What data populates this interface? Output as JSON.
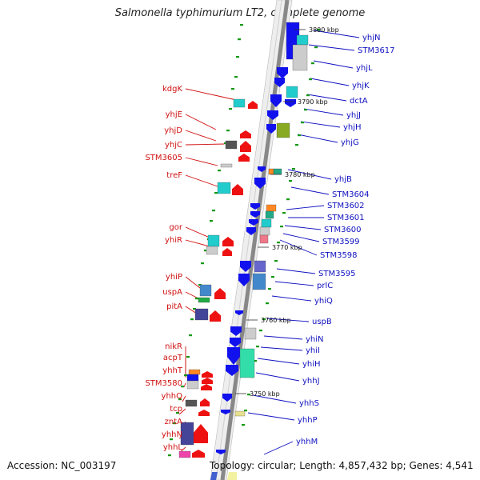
{
  "title": "Salmonella typhimurium LT2, complete genome",
  "footer": {
    "accession": "Accession: NC_003197",
    "topology": "Topology: circular; Length: 4,857,432 bp; Genes: 4,541"
  },
  "colors": {
    "forward": "#ee1111",
    "reverse": "#1111ee",
    "backbone": "#888888",
    "leader_fwd": "#d01010",
    "leader_rev": "#1010c0",
    "dash": "#119911"
  },
  "ticks": [
    {
      "label": "3800 kbp"
    },
    {
      "label": "3790 kbp"
    },
    {
      "label": "3780 kbp"
    },
    {
      "label": "3770 kbp"
    },
    {
      "label": "3760 kbp"
    },
    {
      "label": "3750 kbp"
    }
  ],
  "forward_genes": [
    {
      "label": "kdgK"
    },
    {
      "label": "yhjE"
    },
    {
      "label": "yhjD"
    },
    {
      "label": "yhjC"
    },
    {
      "label": "STM3605"
    },
    {
      "label": "treF"
    },
    {
      "label": "gor"
    },
    {
      "label": "yhiR"
    },
    {
      "label": "yhiP"
    },
    {
      "label": "uspA"
    },
    {
      "label": "pitA"
    },
    {
      "label": "nikR"
    },
    {
      "label": "acpT"
    },
    {
      "label": "yhhT"
    },
    {
      "label": "STM3580"
    },
    {
      "label": "yhhQ"
    },
    {
      "label": "tcp"
    },
    {
      "label": "zntA"
    },
    {
      "label": "yhhN"
    },
    {
      "label": "yhhL"
    }
  ],
  "reverse_genes": [
    {
      "label": "yhjN"
    },
    {
      "label": "STM3617"
    },
    {
      "label": "yhjL"
    },
    {
      "label": "yhjK"
    },
    {
      "label": "dctA"
    },
    {
      "label": "yhjJ"
    },
    {
      "label": "yhjH"
    },
    {
      "label": "yhjG"
    },
    {
      "label": "yhjB"
    },
    {
      "label": "STM3604"
    },
    {
      "label": "STM3602"
    },
    {
      "label": "STM3601"
    },
    {
      "label": "STM3600"
    },
    {
      "label": "STM3599"
    },
    {
      "label": "STM3598"
    },
    {
      "label": "STM3595"
    },
    {
      "label": "prlC"
    },
    {
      "label": "yhiQ"
    },
    {
      "label": "uspB"
    },
    {
      "label": "yhiN"
    },
    {
      "label": "yhiI"
    },
    {
      "label": "yhiH"
    },
    {
      "label": "yhhJ"
    },
    {
      "label": "yhhS"
    },
    {
      "label": "yhhP"
    },
    {
      "label": "yhhM"
    }
  ]
}
